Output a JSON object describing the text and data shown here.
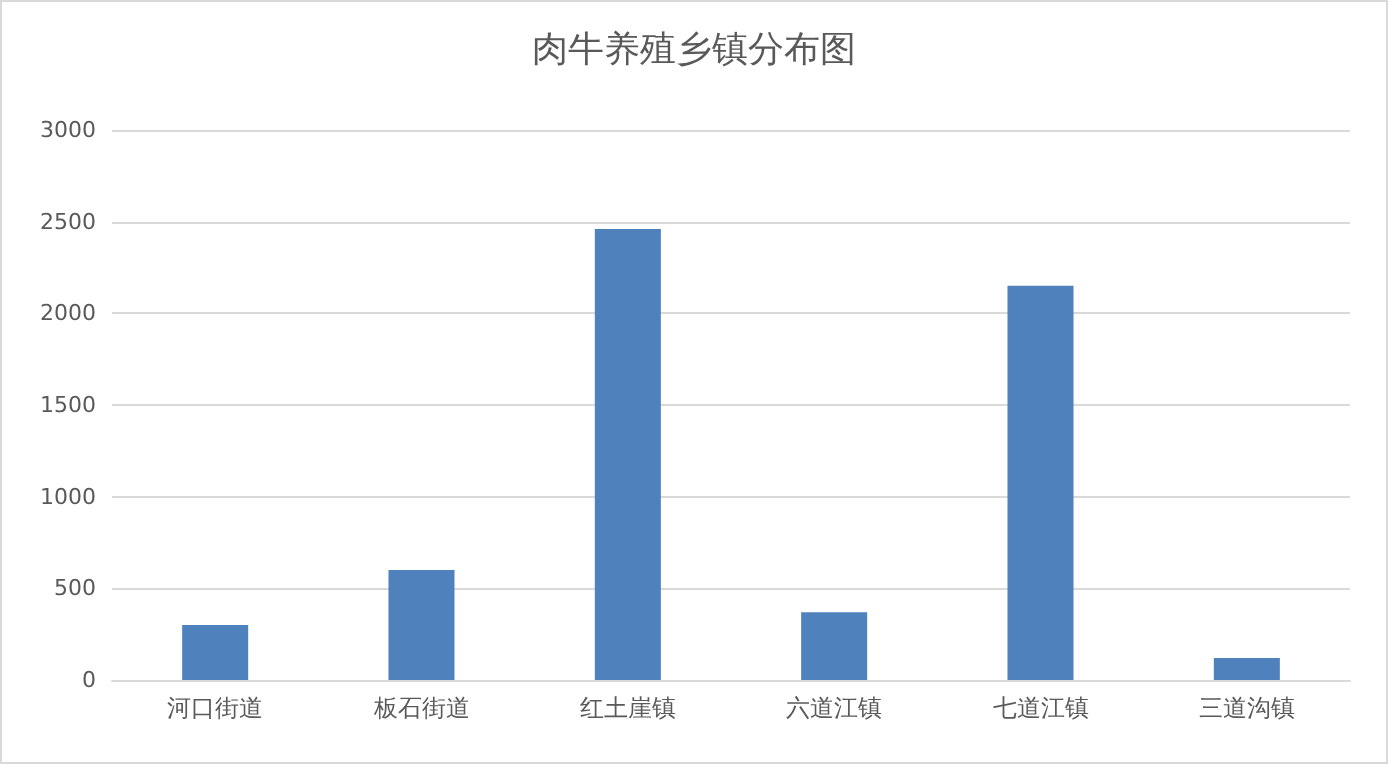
{
  "chart_data": {
    "type": "bar",
    "title": "肉牛养殖乡镇分布图",
    "categories": [
      "河口街道",
      "板石街道",
      "红土崖镇",
      "六道江镇",
      "七道江镇",
      "三道沟镇"
    ],
    "values": [
      300,
      600,
      2460,
      370,
      2150,
      120
    ],
    "color": "#4f81bd",
    "ylim": [
      0,
      3000
    ],
    "yticks": [
      0,
      500,
      1000,
      1500,
      2000,
      2500,
      3000
    ],
    "grid": "y"
  }
}
